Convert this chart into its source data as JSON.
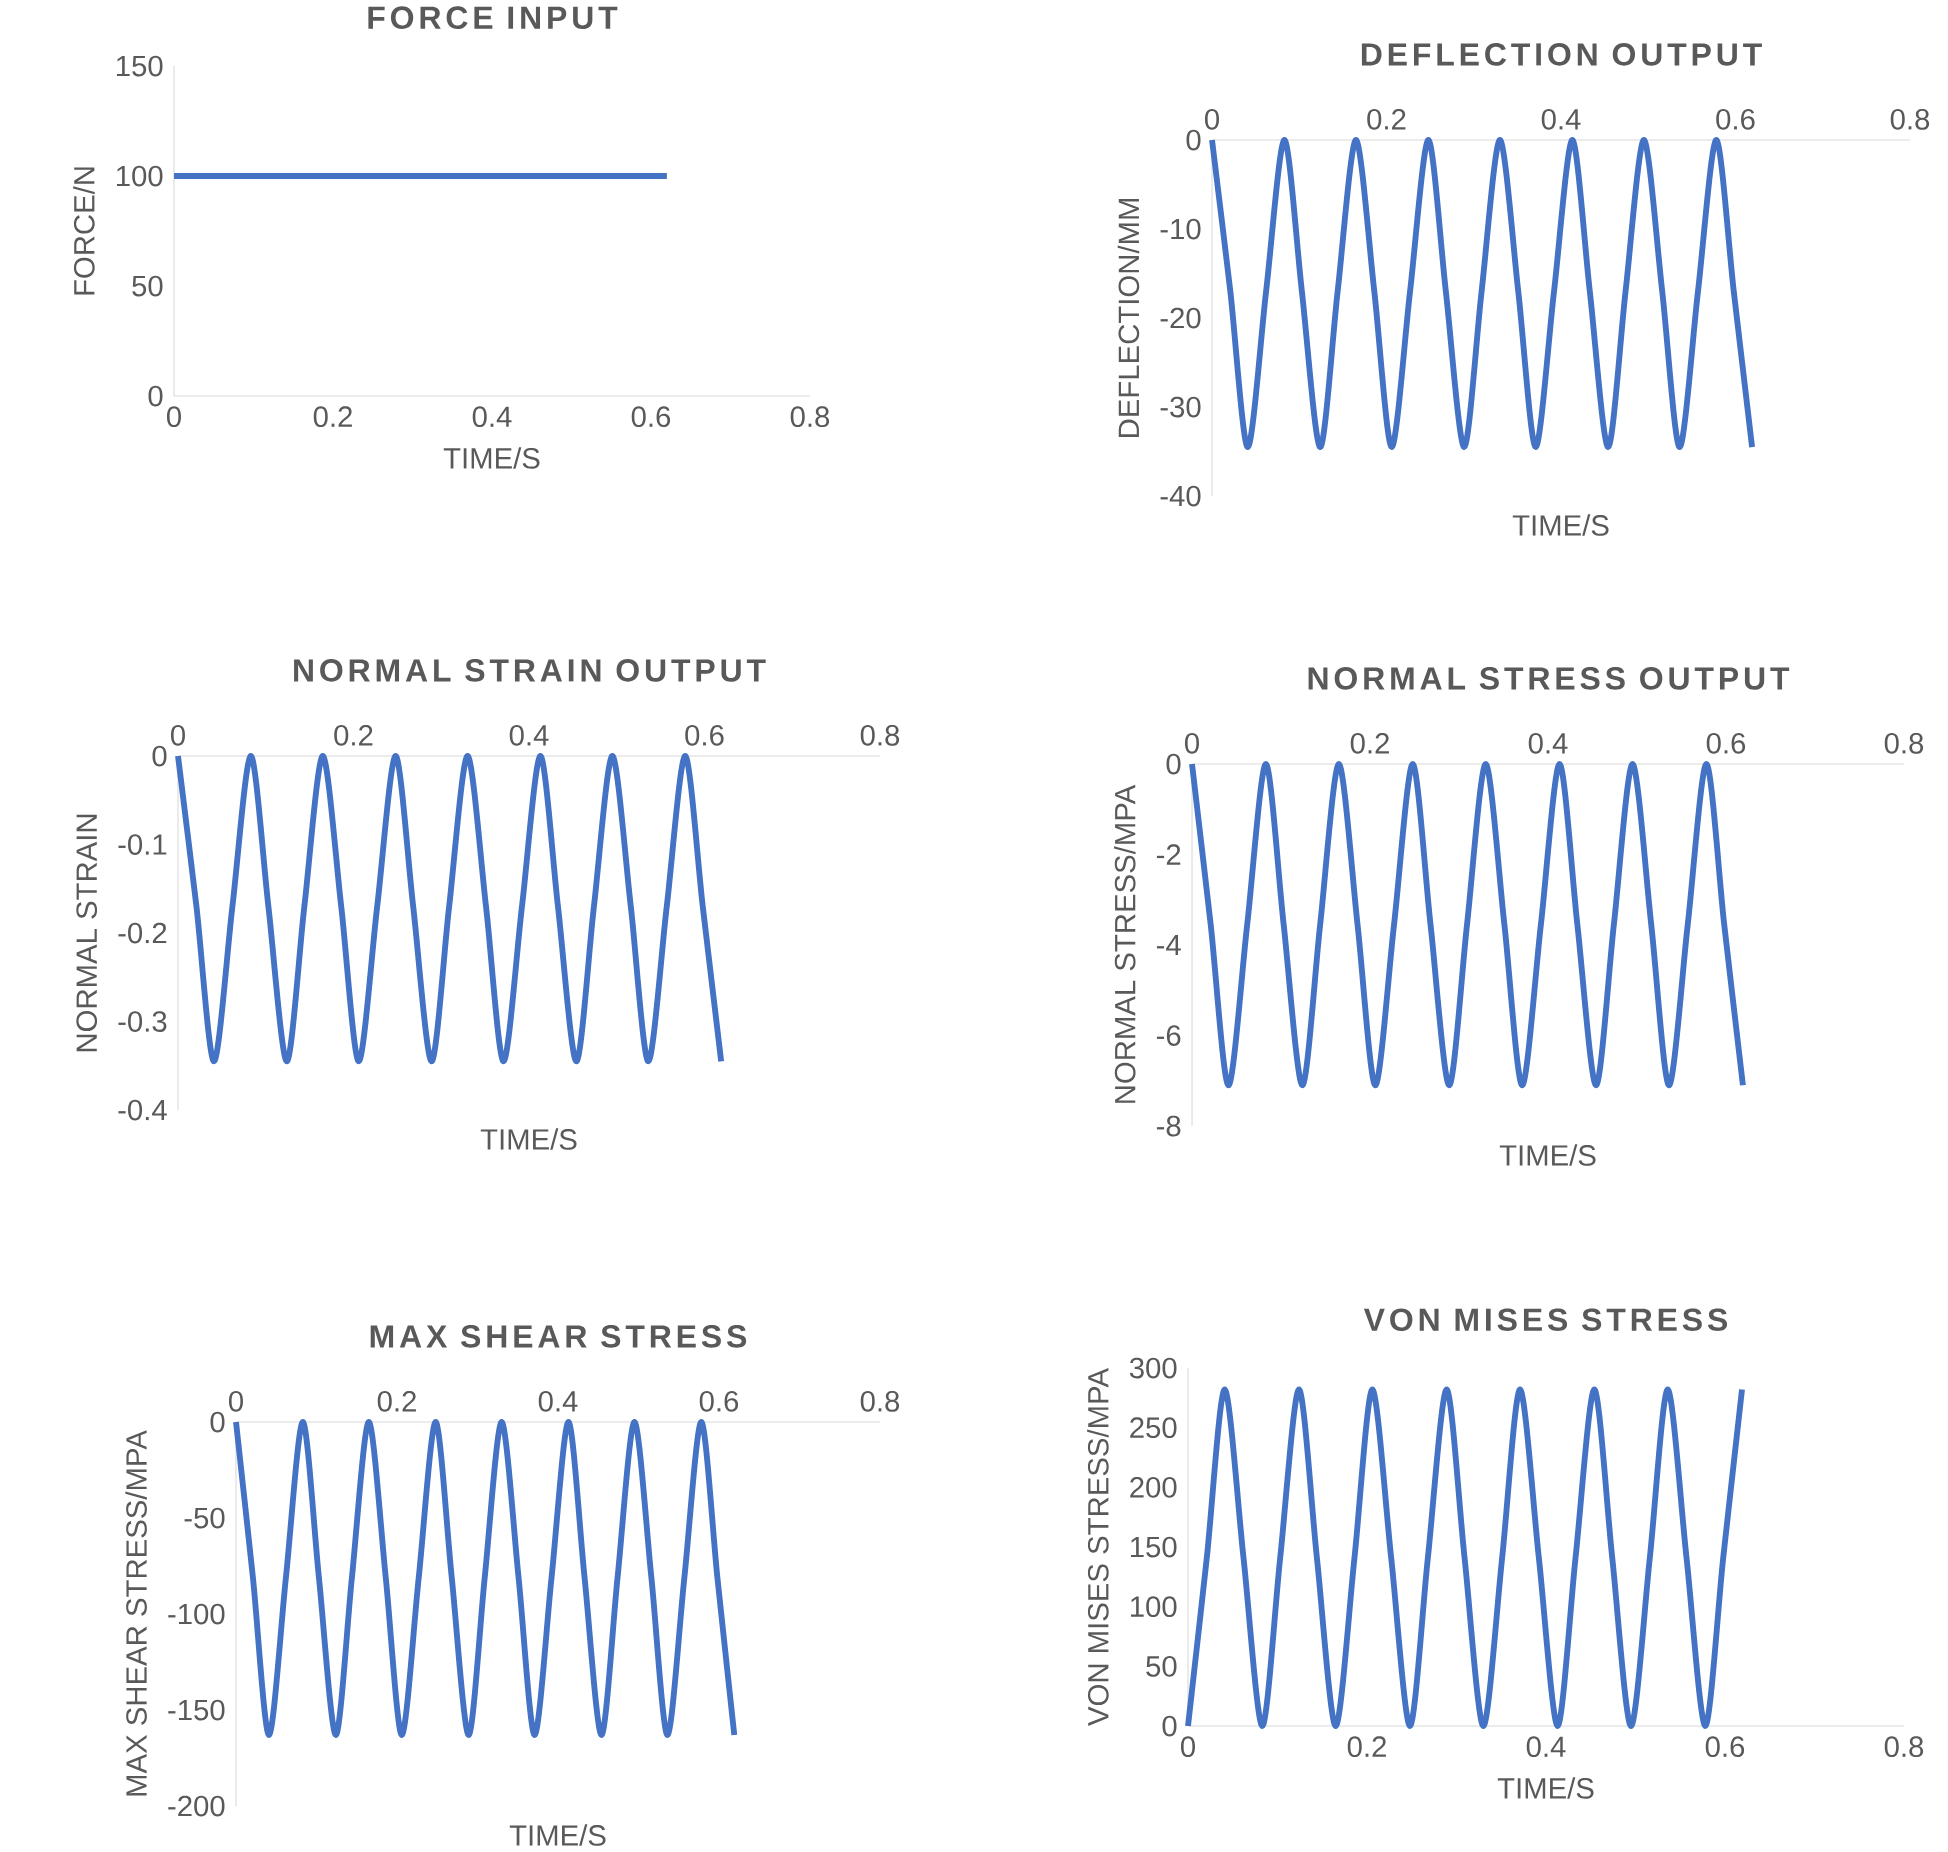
{
  "chart_data": [
    {
      "type": "line",
      "title": "FORCE INPUT",
      "xlabel": "TIME/S",
      "ylabel": "FORCE/N",
      "color": "#4472c4",
      "x": [
        0,
        0.62
      ],
      "values": [
        100,
        100
      ],
      "xlim": [
        0,
        0.8
      ],
      "ylim": [
        0,
        150
      ],
      "xticks": [
        0,
        0.2,
        0.4,
        0.6,
        0.8
      ],
      "yticks": [
        0,
        50,
        100,
        150
      ]
    },
    {
      "type": "line",
      "title": "DEFLECTION OUTPUT",
      "xlabel": "TIME/S",
      "ylabel": "DEFLECTION/MM",
      "color": "#4472c4",
      "x": [
        0,
        0.021,
        0.041,
        0.062,
        0.083,
        0.103,
        0.124,
        0.144,
        0.165,
        0.186,
        0.206,
        0.227,
        0.248,
        0.268,
        0.289,
        0.309,
        0.33,
        0.351,
        0.371,
        0.392,
        0.413,
        0.433,
        0.454,
        0.474,
        0.495,
        0.516,
        0.536,
        0.557,
        0.578,
        0.598,
        0.619
      ],
      "values": [
        0,
        -17,
        -34.5,
        -17,
        0,
        -17,
        -34.5,
        -17,
        0,
        -17,
        -34.5,
        -17,
        0,
        -17,
        -34.5,
        -17,
        0,
        -17,
        -34.5,
        -17,
        0,
        -17,
        -34.5,
        -17,
        0,
        -17,
        -34.5,
        -17,
        0,
        -17,
        -34.5
      ],
      "xlim": [
        0,
        0.8
      ],
      "ylim": [
        -40,
        0
      ],
      "xticks": [
        0,
        0.2,
        0.4,
        0.6,
        0.8
      ],
      "yticks": [
        -40,
        -30,
        -20,
        -10,
        0
      ]
    },
    {
      "type": "line",
      "title": "NORMAL STRAIN OUTPUT",
      "xlabel": "TIME/S",
      "ylabel": "NORMAL STRAIN",
      "color": "#4472c4",
      "x": [
        0,
        0.021,
        0.041,
        0.062,
        0.083,
        0.103,
        0.124,
        0.144,
        0.165,
        0.186,
        0.206,
        0.227,
        0.248,
        0.268,
        0.289,
        0.309,
        0.33,
        0.351,
        0.371,
        0.392,
        0.413,
        0.433,
        0.454,
        0.474,
        0.495,
        0.516,
        0.536,
        0.557,
        0.578,
        0.598,
        0.619
      ],
      "values": [
        0,
        -0.17,
        -0.345,
        -0.17,
        0,
        -0.17,
        -0.345,
        -0.17,
        0,
        -0.17,
        -0.345,
        -0.17,
        0,
        -0.17,
        -0.345,
        -0.17,
        0,
        -0.17,
        -0.345,
        -0.17,
        0,
        -0.17,
        -0.345,
        -0.17,
        0,
        -0.17,
        -0.345,
        -0.17,
        0,
        -0.17,
        -0.345
      ],
      "xlim": [
        0,
        0.8
      ],
      "ylim": [
        -0.4,
        0
      ],
      "xticks": [
        0,
        0.2,
        0.4,
        0.6,
        0.8
      ],
      "yticks": [
        -0.4,
        -0.3,
        -0.2,
        -0.1,
        0
      ]
    },
    {
      "type": "line",
      "title": "NORMAL STRESS OUTPUT",
      "xlabel": "TIME/S",
      "ylabel": "NORMAL STRESS/MPA",
      "color": "#4472c4",
      "x": [
        0,
        0.021,
        0.041,
        0.062,
        0.083,
        0.103,
        0.124,
        0.144,
        0.165,
        0.186,
        0.206,
        0.227,
        0.248,
        0.268,
        0.289,
        0.309,
        0.33,
        0.351,
        0.371,
        0.392,
        0.413,
        0.433,
        0.454,
        0.474,
        0.495,
        0.516,
        0.536,
        0.557,
        0.578,
        0.598,
        0.619
      ],
      "values": [
        0,
        -3.55,
        -7.1,
        -3.55,
        0,
        -3.55,
        -7.1,
        -3.55,
        0,
        -3.55,
        -7.1,
        -3.55,
        0,
        -3.55,
        -7.1,
        -3.55,
        0,
        -3.55,
        -7.1,
        -3.55,
        0,
        -3.55,
        -7.1,
        -3.55,
        0,
        -3.55,
        -7.1,
        -3.55,
        0,
        -3.55,
        -7.1
      ],
      "xlim": [
        0,
        0.8
      ],
      "ylim": [
        -8,
        0
      ],
      "xticks": [
        0,
        0.2,
        0.4,
        0.6,
        0.8
      ],
      "yticks": [
        -8,
        -6,
        -4,
        -2,
        0
      ]
    },
    {
      "type": "line",
      "title": "MAX SHEAR STRESS",
      "xlabel": "TIME/S",
      "ylabel": "MAX SHEAR STRESS/MPA",
      "color": "#4472c4",
      "x": [
        0,
        0.021,
        0.041,
        0.062,
        0.083,
        0.103,
        0.124,
        0.144,
        0.165,
        0.186,
        0.206,
        0.227,
        0.248,
        0.268,
        0.289,
        0.309,
        0.33,
        0.351,
        0.371,
        0.392,
        0.413,
        0.433,
        0.454,
        0.474,
        0.495,
        0.516,
        0.536,
        0.557,
        0.578,
        0.598,
        0.619
      ],
      "values": [
        0,
        -81,
        -163,
        -81,
        0,
        -81,
        -163,
        -81,
        0,
        -81,
        -163,
        -81,
        0,
        -81,
        -163,
        -81,
        0,
        -81,
        -163,
        -81,
        0,
        -81,
        -163,
        -81,
        0,
        -81,
        -163,
        -81,
        0,
        -81,
        -163
      ],
      "xlim": [
        0,
        0.8
      ],
      "ylim": [
        -200,
        0
      ],
      "xticks": [
        0,
        0.2,
        0.4,
        0.6,
        0.8
      ],
      "yticks": [
        -200,
        -150,
        -100,
        -50,
        0
      ]
    },
    {
      "type": "line",
      "title": "VON MISES STRESS",
      "xlabel": "TIME/S",
      "ylabel": "VON MISES STRESS/MPA",
      "color": "#4472c4",
      "x": [
        0,
        0.021,
        0.041,
        0.062,
        0.083,
        0.103,
        0.124,
        0.144,
        0.165,
        0.186,
        0.206,
        0.227,
        0.248,
        0.268,
        0.289,
        0.309,
        0.33,
        0.351,
        0.371,
        0.392,
        0.413,
        0.433,
        0.454,
        0.474,
        0.495,
        0.516,
        0.536,
        0.557,
        0.578,
        0.598,
        0.619
      ],
      "values": [
        0,
        141,
        282,
        141,
        0,
        141,
        282,
        141,
        0,
        141,
        282,
        141,
        0,
        141,
        282,
        141,
        0,
        141,
        282,
        141,
        0,
        141,
        282,
        141,
        0,
        141,
        282,
        141,
        0,
        141,
        282
      ],
      "xlim": [
        0,
        0.8
      ],
      "ylim": [
        0,
        300
      ],
      "xticks": [
        0,
        0.2,
        0.4,
        0.6,
        0.8
      ],
      "yticks": [
        0,
        50,
        100,
        150,
        200,
        250,
        300
      ]
    }
  ]
}
